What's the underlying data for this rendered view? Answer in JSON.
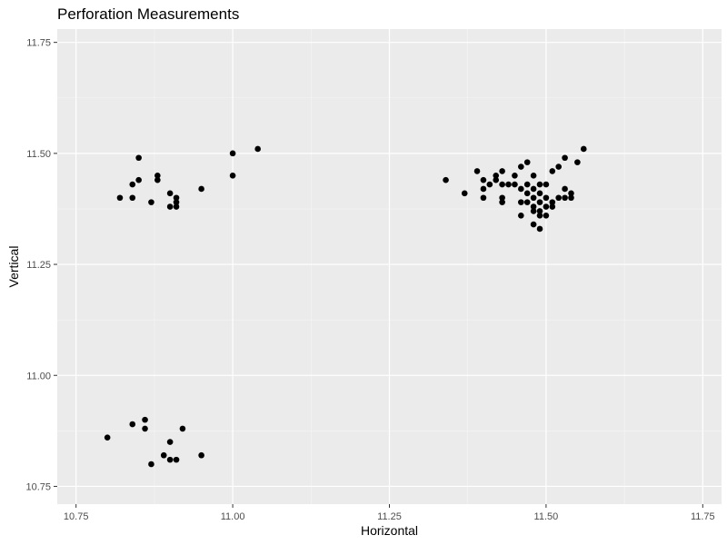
{
  "chart_data": {
    "type": "scatter",
    "title": "Perforation Measurements",
    "xlabel": "Horizontal",
    "ylabel": "Vertical",
    "xlim": [
      10.72,
      11.78
    ],
    "ylim": [
      10.71,
      11.78
    ],
    "x_ticks": [
      10.75,
      11.0,
      11.25,
      11.5,
      11.75
    ],
    "x_tick_labels": [
      "10.75",
      "11.00",
      "11.25",
      "11.50",
      "11.75"
    ],
    "y_ticks": [
      10.75,
      11.0,
      11.25,
      11.5,
      11.75
    ],
    "y_tick_labels": [
      "10.75",
      "11.00",
      "11.25",
      "11.50",
      "11.75"
    ],
    "grid": true,
    "legend": "none",
    "colors": {
      "panel_background": "#ebebeb",
      "grid_major": "#ffffff",
      "grid_minor": "#f5f5f5",
      "point": "#000000",
      "tick_label": "#4d4d4d"
    },
    "points": [
      [
        10.85,
        11.49
      ],
      [
        10.88,
        11.45
      ],
      [
        10.88,
        11.44
      ],
      [
        10.85,
        11.44
      ],
      [
        10.84,
        11.43
      ],
      [
        10.82,
        11.4
      ],
      [
        10.84,
        11.4
      ],
      [
        10.87,
        11.39
      ],
      [
        10.9,
        11.41
      ],
      [
        10.91,
        11.4
      ],
      [
        10.91,
        11.39
      ],
      [
        10.91,
        11.38
      ],
      [
        10.9,
        11.38
      ],
      [
        10.95,
        11.42
      ],
      [
        11.0,
        11.5
      ],
      [
        11.0,
        11.45
      ],
      [
        11.04,
        11.51
      ],
      [
        10.8,
        10.86
      ],
      [
        10.84,
        10.89
      ],
      [
        10.86,
        10.9
      ],
      [
        10.86,
        10.88
      ],
      [
        10.92,
        10.88
      ],
      [
        10.9,
        10.85
      ],
      [
        10.89,
        10.82
      ],
      [
        10.9,
        10.81
      ],
      [
        10.91,
        10.81
      ],
      [
        10.87,
        10.8
      ],
      [
        10.95,
        10.82
      ],
      [
        11.34,
        11.44
      ],
      [
        11.37,
        11.41
      ],
      [
        11.39,
        11.46
      ],
      [
        11.4,
        11.42
      ],
      [
        11.4,
        11.4
      ],
      [
        11.4,
        11.44
      ],
      [
        11.41,
        11.43
      ],
      [
        11.42,
        11.44
      ],
      [
        11.42,
        11.45
      ],
      [
        11.43,
        11.46
      ],
      [
        11.43,
        11.43
      ],
      [
        11.43,
        11.4
      ],
      [
        11.43,
        11.39
      ],
      [
        11.44,
        11.43
      ],
      [
        11.45,
        11.45
      ],
      [
        11.45,
        11.43
      ],
      [
        11.46,
        11.42
      ],
      [
        11.46,
        11.47
      ],
      [
        11.46,
        11.39
      ],
      [
        11.46,
        11.36
      ],
      [
        11.47,
        11.48
      ],
      [
        11.47,
        11.43
      ],
      [
        11.47,
        11.41
      ],
      [
        11.47,
        11.39
      ],
      [
        11.48,
        11.45
      ],
      [
        11.48,
        11.42
      ],
      [
        11.48,
        11.4
      ],
      [
        11.48,
        11.38
      ],
      [
        11.48,
        11.37
      ],
      [
        11.48,
        11.34
      ],
      [
        11.49,
        11.43
      ],
      [
        11.49,
        11.41
      ],
      [
        11.49,
        11.39
      ],
      [
        11.49,
        11.37
      ],
      [
        11.49,
        11.36
      ],
      [
        11.49,
        11.33
      ],
      [
        11.5,
        11.43
      ],
      [
        11.5,
        11.4
      ],
      [
        11.5,
        11.38
      ],
      [
        11.5,
        11.36
      ],
      [
        11.51,
        11.39
      ],
      [
        11.51,
        11.38
      ],
      [
        11.51,
        11.46
      ],
      [
        11.52,
        11.47
      ],
      [
        11.52,
        11.4
      ],
      [
        11.53,
        11.4
      ],
      [
        11.53,
        11.42
      ],
      [
        11.53,
        11.49
      ],
      [
        11.54,
        11.41
      ],
      [
        11.54,
        11.4
      ],
      [
        11.55,
        11.48
      ],
      [
        11.56,
        11.51
      ]
    ]
  }
}
